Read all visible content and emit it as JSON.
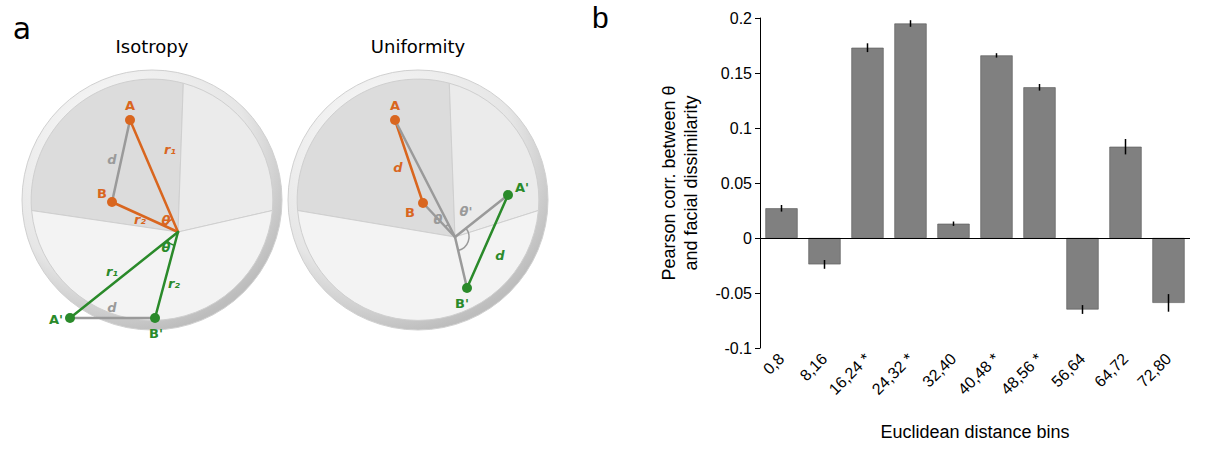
{
  "chart_data": {
    "type": "bar",
    "panel_label": "b",
    "categories": [
      "0,8",
      "8,16",
      "16,24 *",
      "24,32 *",
      "32,40",
      "40,48 *",
      "48,56 *",
      "56,64",
      "64,72",
      "72,80"
    ],
    "values": [
      0.027,
      -0.024,
      0.173,
      0.195,
      0.013,
      0.166,
      0.137,
      -0.065,
      0.083,
      -0.059
    ],
    "errors": [
      0.003,
      0.004,
      0.004,
      0.003,
      0.002,
      0.002,
      0.003,
      0.004,
      0.007,
      0.008
    ],
    "color": "#808080",
    "xlabel": "Euclidean distance bins",
    "ylabel": "Pearson corr. between θ and facial dissimilarity",
    "ylim": [
      -0.1,
      0.2
    ],
    "yticks": [
      -0.1,
      -0.05,
      0,
      0.05,
      0.1,
      0.15,
      0.2
    ],
    "grid": false
  },
  "diagram": {
    "panel_label": "a",
    "panels": [
      {
        "title": "Isotropy",
        "points": [
          "A",
          "B",
          "A'",
          "B'"
        ],
        "labels": [
          "d",
          "r₁",
          "r₂",
          "θ",
          "θ",
          "r₁",
          "r₂",
          "d"
        ]
      },
      {
        "title": "Uniformity",
        "points": [
          "A",
          "B",
          "A'",
          "B'"
        ],
        "labels": [
          "d",
          "θ",
          "θ'",
          "d"
        ]
      }
    ]
  }
}
